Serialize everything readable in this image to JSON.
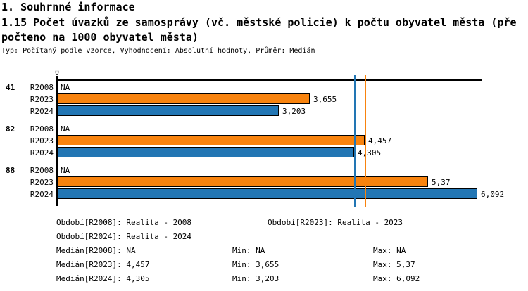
{
  "header": {
    "section_title": "1. Souhrnné informace",
    "title_lines": [
      "1.15 Počet úvazků ze samosprávy (vč. městské policie) k počtu obyvatel města (pře",
      "počteno na 1000 obyvatel města)"
    ],
    "meta": "Typ: Počítaný podle vzorce, Vyhodnocení: Absolutní hodnoty, Průměr: Medián"
  },
  "colors": {
    "r2023_orange": "#F8830E",
    "r2024_blue": "#2276B4",
    "axis_black": "#000000"
  },
  "chart_data": {
    "type": "bar",
    "orientation": "horizontal",
    "title": "1.15 Počet úvazků ze samosprávy (vč. městské policie) k počtu obyvatel města (přepočteno na 1000 obyvatel města)",
    "x_axis": {
      "zero_tick_label": "0",
      "min": 0,
      "grid": false
    },
    "series_colors": {
      "R2023": "#F8830E",
      "R2024": "#2276B4"
    },
    "groups": [
      {
        "label": "41",
        "bars": [
          {
            "series": "R2008",
            "value": null,
            "display": "NA"
          },
          {
            "series": "R2023",
            "value": 3.655,
            "display": "3,655"
          },
          {
            "series": "R2024",
            "value": 3.203,
            "display": "3,203"
          }
        ]
      },
      {
        "label": "82",
        "bars": [
          {
            "series": "R2008",
            "value": null,
            "display": "NA"
          },
          {
            "series": "R2023",
            "value": 4.457,
            "display": "4,457"
          },
          {
            "series": "R2024",
            "value": 4.305,
            "display": "4,305"
          }
        ]
      },
      {
        "label": "88",
        "bars": [
          {
            "series": "R2008",
            "value": null,
            "display": "NA"
          },
          {
            "series": "R2023",
            "value": 5.37,
            "display": "5,37"
          },
          {
            "series": "R2024",
            "value": 6.092,
            "display": "6,092"
          }
        ]
      }
    ],
    "reference_lines": [
      {
        "name": "median-R2024",
        "value": 4.305,
        "color": "#2276B4"
      },
      {
        "name": "median-R2023",
        "value": 4.457,
        "color": "#F8830E"
      }
    ]
  },
  "legend": {
    "entries": [
      {
        "text": "Období[R2008]: Realita - 2008",
        "row": 0,
        "col": 0
      },
      {
        "text": "Období[R2023]: Realita - 2023",
        "row": 0,
        "col": 1
      },
      {
        "text": "Období[R2024]: Realita - 2024",
        "row": 1,
        "col": 0
      },
      {
        "text": "Medián[R2008]: NA",
        "row": 2,
        "col": 0
      },
      {
        "text": "Min: NA",
        "row": 2,
        "col": 2
      },
      {
        "text": "Max: NA",
        "row": 2,
        "col": 3
      },
      {
        "text": "Medián[R2023]: 4,457",
        "row": 3,
        "col": 0
      },
      {
        "text": "Min: 3,655",
        "row": 3,
        "col": 2
      },
      {
        "text": "Max: 5,37",
        "row": 3,
        "col": 3
      },
      {
        "text": "Medián[R2024]: 4,305",
        "row": 4,
        "col": 0
      },
      {
        "text": "Min: 3,203",
        "row": 4,
        "col": 2
      },
      {
        "text": "Max: 6,092",
        "row": 4,
        "col": 3
      }
    ]
  }
}
